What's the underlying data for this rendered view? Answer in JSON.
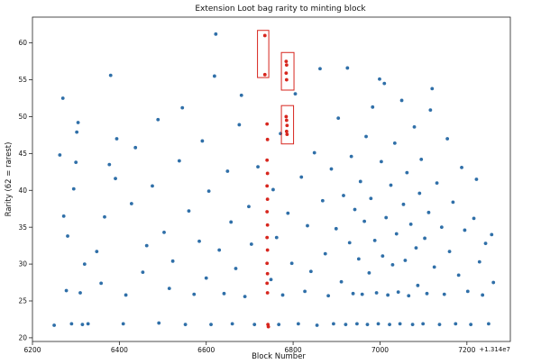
{
  "chart_data": {
    "type": "scatter",
    "title": "Extension Loot bag rarity to minting block",
    "xlabel": "Block Number",
    "ylabel": "Rarity (62 = rarest)",
    "x_offset_label": "+1.314e7",
    "xlim": [
      6200,
      7300
    ],
    "ylim": [
      19.5,
      63.5
    ],
    "x_ticks": [
      6200,
      6400,
      6600,
      6800,
      7000,
      7200
    ],
    "y_ticks": [
      20,
      25,
      30,
      35,
      40,
      45,
      50,
      55,
      60
    ],
    "grid": false,
    "series": [
      {
        "color": "#2f6fa8",
        "points": [
          [
            6250,
            21.7
          ],
          [
            6263,
            44.8
          ],
          [
            6270,
            52.5
          ],
          [
            6272,
            36.5
          ],
          [
            6278,
            26.4
          ],
          [
            6281,
            33.8
          ],
          [
            6290,
            21.9
          ],
          [
            6295,
            40.2
          ],
          [
            6300,
            43.8
          ],
          [
            6302,
            47.9
          ],
          [
            6305,
            49.2
          ],
          [
            6310,
            26.1
          ],
          [
            6315,
            21.8
          ],
          [
            6320,
            30.0
          ],
          [
            6328,
            21.9
          ],
          [
            6348,
            31.7
          ],
          [
            6358,
            27.4
          ],
          [
            6366,
            36.4
          ],
          [
            6377,
            43.5
          ],
          [
            6380,
            55.6
          ],
          [
            6391,
            41.6
          ],
          [
            6394,
            47.0
          ],
          [
            6409,
            21.9
          ],
          [
            6415,
            25.8
          ],
          [
            6428,
            38.2
          ],
          [
            6437,
            45.8
          ],
          [
            6454,
            28.9
          ],
          [
            6463,
            32.5
          ],
          [
            6476,
            40.6
          ],
          [
            6489,
            49.6
          ],
          [
            6491,
            22.0
          ],
          [
            6503,
            34.3
          ],
          [
            6515,
            26.7
          ],
          [
            6523,
            30.4
          ],
          [
            6538,
            44.0
          ],
          [
            6545,
            51.2
          ],
          [
            6552,
            21.8
          ],
          [
            6560,
            37.2
          ],
          [
            6572,
            25.9
          ],
          [
            6584,
            33.1
          ],
          [
            6591,
            46.7
          ],
          [
            6600,
            28.1
          ],
          [
            6606,
            39.9
          ],
          [
            6611,
            21.8
          ],
          [
            6619,
            55.5
          ],
          [
            6622,
            61.2
          ],
          [
            6630,
            31.9
          ],
          [
            6641,
            26.0
          ],
          [
            6649,
            42.6
          ],
          [
            6657,
            35.7
          ],
          [
            6660,
            21.9
          ],
          [
            6668,
            29.4
          ],
          [
            6676,
            48.9
          ],
          [
            6681,
            52.9
          ],
          [
            6689,
            25.6
          ],
          [
            6698,
            37.8
          ],
          [
            6704,
            32.7
          ],
          [
            6711,
            21.8
          ],
          [
            6719,
            43.2
          ],
          [
            6749,
            27.9
          ],
          [
            6754,
            40.1
          ],
          [
            6762,
            33.6
          ],
          [
            6767,
            21.8
          ],
          [
            6771,
            47.7
          ],
          [
            6776,
            25.8
          ],
          [
            6788,
            36.9
          ],
          [
            6797,
            30.1
          ],
          [
            6805,
            53.1
          ],
          [
            6812,
            21.9
          ],
          [
            6819,
            41.8
          ],
          [
            6827,
            26.3
          ],
          [
            6833,
            35.2
          ],
          [
            6841,
            29.0
          ],
          [
            6849,
            45.1
          ],
          [
            6855,
            21.7
          ],
          [
            6862,
            56.5
          ],
          [
            6868,
            38.6
          ],
          [
            6874,
            31.4
          ],
          [
            6881,
            25.7
          ],
          [
            6888,
            42.9
          ],
          [
            6893,
            21.9
          ],
          [
            6899,
            34.8
          ],
          [
            6904,
            49.8
          ],
          [
            6911,
            27.6
          ],
          [
            6916,
            39.3
          ],
          [
            6921,
            21.8
          ],
          [
            6925,
            56.6
          ],
          [
            6930,
            32.9
          ],
          [
            6934,
            44.6
          ],
          [
            6938,
            26.0
          ],
          [
            6942,
            37.4
          ],
          [
            6947,
            21.9
          ],
          [
            6951,
            30.7
          ],
          [
            6955,
            41.2
          ],
          [
            6959,
            25.9
          ],
          [
            6964,
            35.8
          ],
          [
            6968,
            47.3
          ],
          [
            6971,
            21.8
          ],
          [
            6975,
            28.8
          ],
          [
            6979,
            38.9
          ],
          [
            6983,
            51.3
          ],
          [
            6988,
            33.2
          ],
          [
            6992,
            26.1
          ],
          [
            6996,
            21.9
          ],
          [
            6999,
            55.1
          ],
          [
            7003,
            43.9
          ],
          [
            7006,
            31.1
          ],
          [
            7010,
            54.5
          ],
          [
            7014,
            36.3
          ],
          [
            7018,
            25.8
          ],
          [
            7022,
            21.8
          ],
          [
            7025,
            40.7
          ],
          [
            7029,
            29.9
          ],
          [
            7034,
            46.4
          ],
          [
            7038,
            34.1
          ],
          [
            7042,
            26.2
          ],
          [
            7046,
            21.9
          ],
          [
            7050,
            52.2
          ],
          [
            7054,
            38.1
          ],
          [
            7058,
            30.5
          ],
          [
            7062,
            42.4
          ],
          [
            7066,
            25.7
          ],
          [
            7071,
            35.4
          ],
          [
            7075,
            21.8
          ],
          [
            7079,
            48.6
          ],
          [
            7083,
            32.2
          ],
          [
            7087,
            27.1
          ],
          [
            7091,
            39.6
          ],
          [
            7095,
            44.2
          ],
          [
            7099,
            21.9
          ],
          [
            7103,
            33.5
          ],
          [
            7108,
            26.0
          ],
          [
            7112,
            37.0
          ],
          [
            7116,
            50.9
          ],
          [
            7120,
            53.8
          ],
          [
            7125,
            29.6
          ],
          [
            7131,
            41.0
          ],
          [
            7137,
            21.8
          ],
          [
            7142,
            35.0
          ],
          [
            7148,
            25.9
          ],
          [
            7155,
            47.0
          ],
          [
            7160,
            31.7
          ],
          [
            7168,
            38.4
          ],
          [
            7174,
            21.9
          ],
          [
            7181,
            28.5
          ],
          [
            7188,
            43.1
          ],
          [
            7195,
            34.6
          ],
          [
            7202,
            26.3
          ],
          [
            7209,
            21.8
          ],
          [
            7216,
            36.2
          ],
          [
            7222,
            41.5
          ],
          [
            7229,
            30.3
          ],
          [
            7236,
            25.8
          ],
          [
            7243,
            32.8
          ],
          [
            7250,
            21.9
          ],
          [
            7257,
            34.0
          ],
          [
            7261,
            27.5
          ]
        ]
      },
      {
        "color": "#d7261e",
        "points": [
          [
            6735,
            61.0
          ],
          [
            6735,
            55.7
          ],
          [
            6784,
            57.5
          ],
          [
            6785,
            57.0
          ],
          [
            6784,
            55.9
          ],
          [
            6785,
            55.0
          ],
          [
            6784,
            50.0
          ],
          [
            6785,
            49.5
          ],
          [
            6786,
            48.8
          ],
          [
            6785,
            48.0
          ],
          [
            6786,
            47.6
          ],
          [
            6740,
            49.0
          ],
          [
            6741,
            46.9
          ],
          [
            6740,
            44.1
          ],
          [
            6741,
            42.3
          ],
          [
            6740,
            40.6
          ],
          [
            6741,
            38.8
          ],
          [
            6740,
            37.1
          ],
          [
            6741,
            35.3
          ],
          [
            6740,
            33.6
          ],
          [
            6741,
            31.9
          ],
          [
            6740,
            30.1
          ],
          [
            6741,
            28.7
          ],
          [
            6740,
            27.4
          ],
          [
            6741,
            26.1
          ],
          [
            6742,
            21.8
          ],
          [
            6743,
            21.5
          ]
        ]
      }
    ],
    "annotations": [
      {
        "type": "rect",
        "color": "#d7261e",
        "x0": 6718,
        "x1": 6744,
        "y0": 55.3,
        "y1": 61.7
      },
      {
        "type": "rect",
        "color": "#d7261e",
        "x0": 6773,
        "x1": 6802,
        "y0": 53.6,
        "y1": 58.7
      },
      {
        "type": "rect",
        "color": "#d7261e",
        "x0": 6773,
        "x1": 6801,
        "y0": 46.3,
        "y1": 51.5
      }
    ]
  }
}
